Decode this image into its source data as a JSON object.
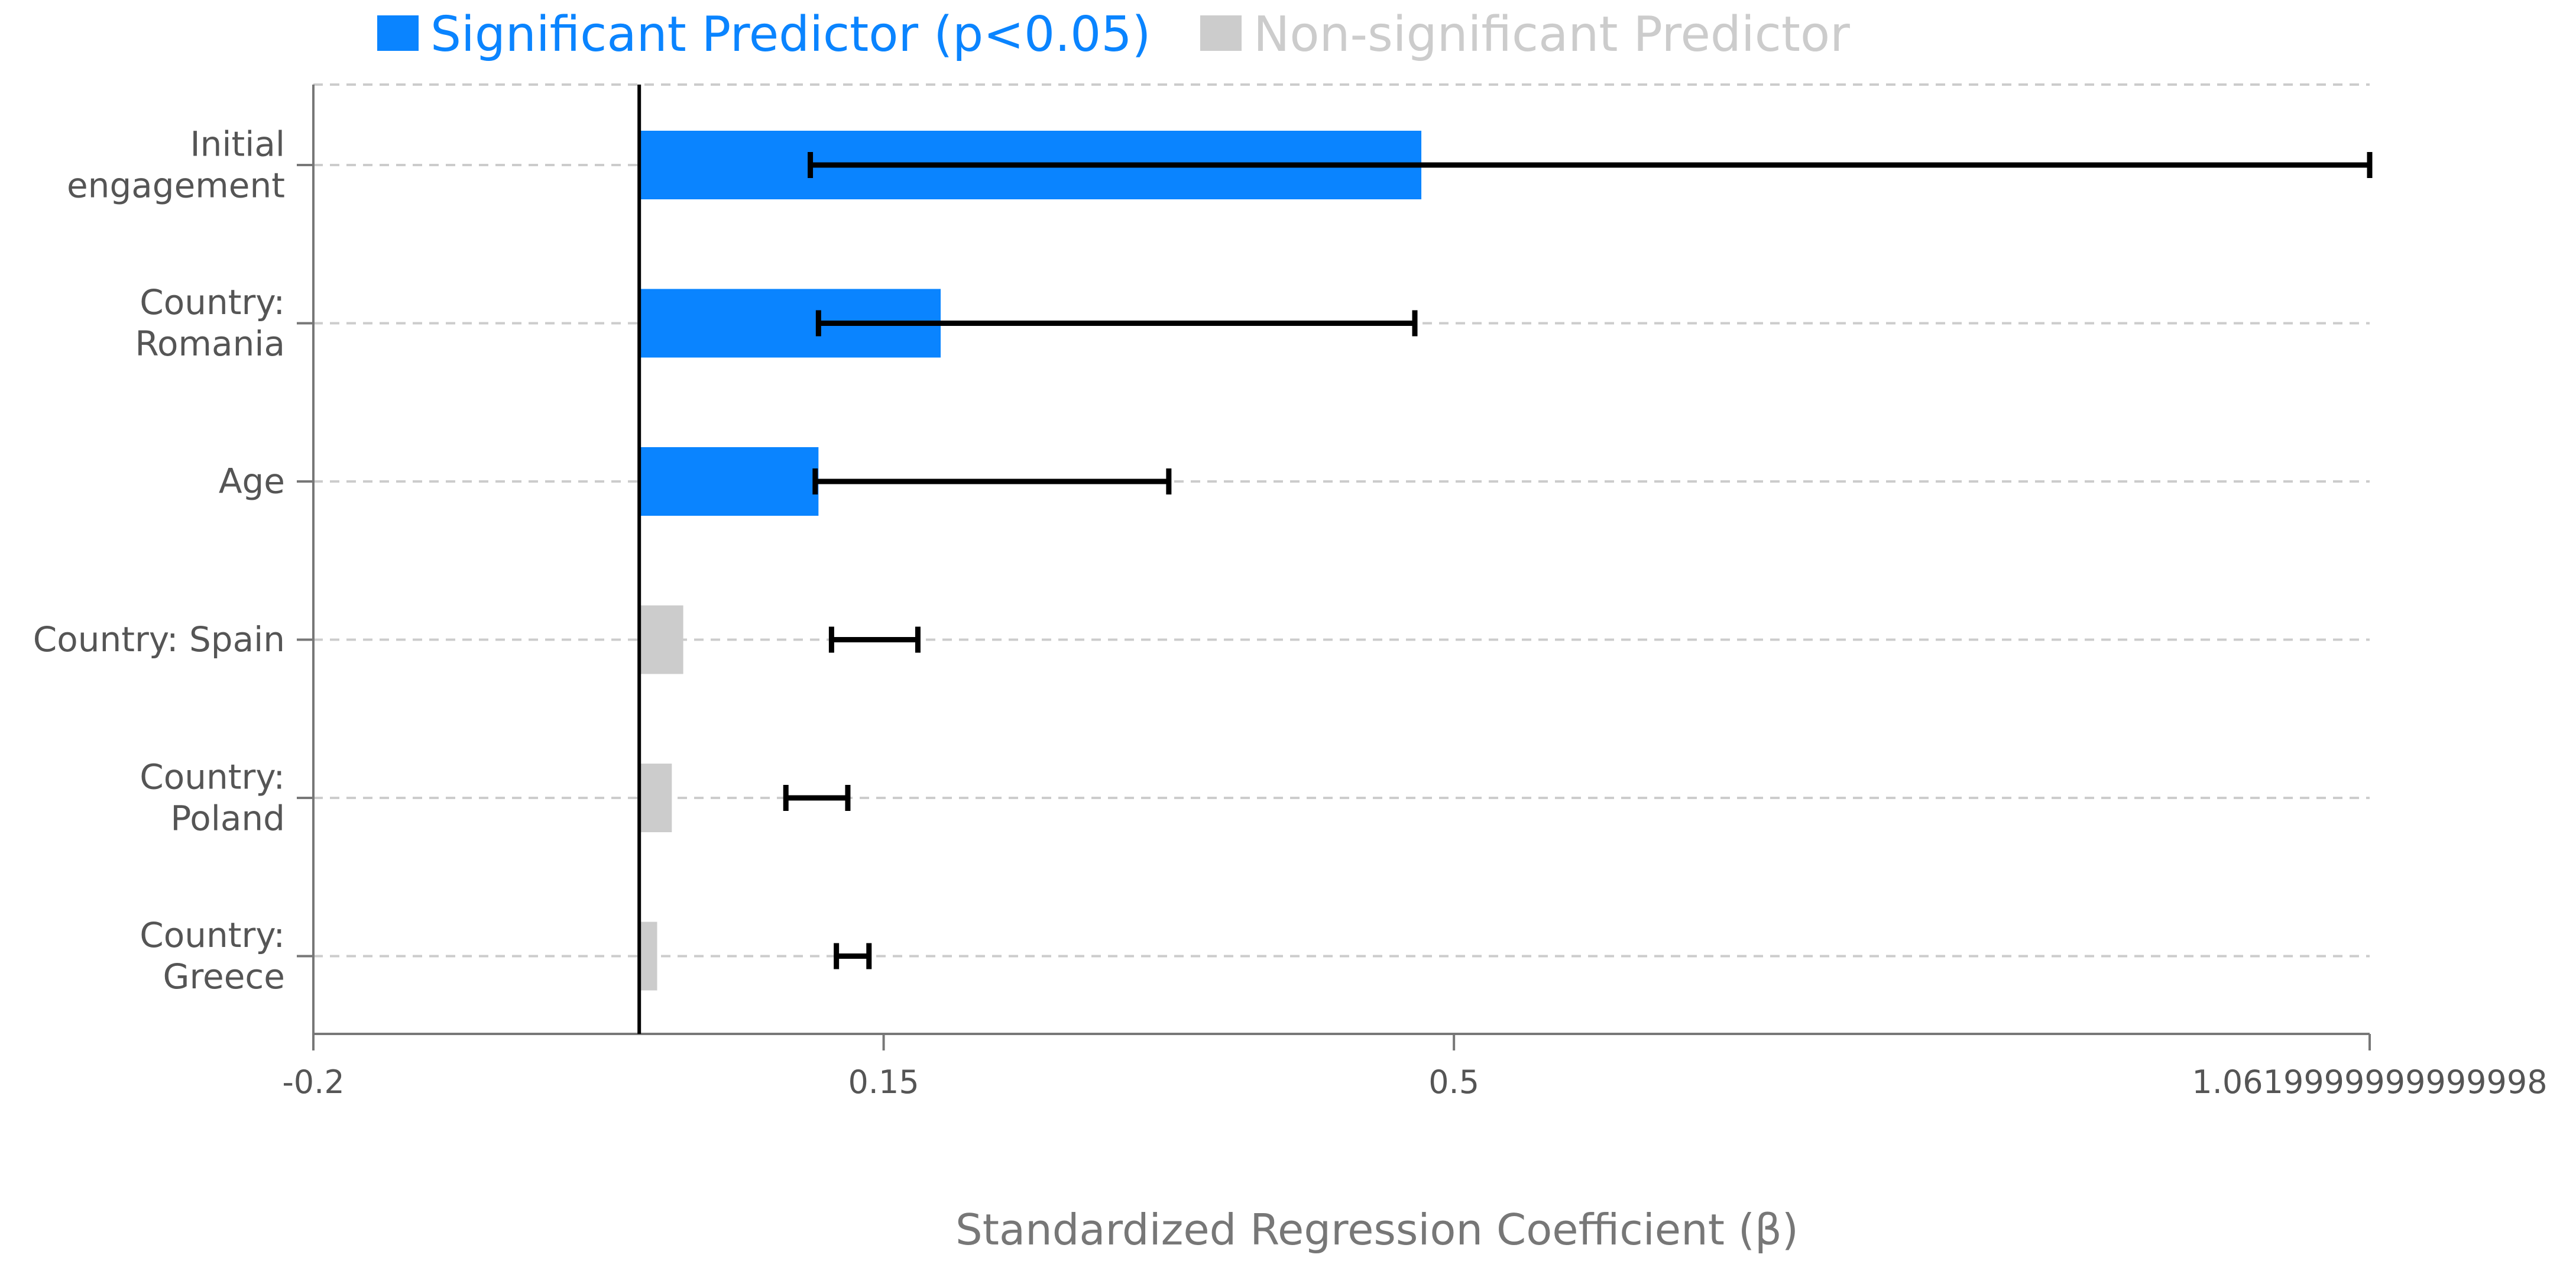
{
  "chart_data": {
    "type": "bar",
    "orientation": "horizontal",
    "title": "",
    "xlabel": "Standardized Regression Coefficient (β)",
    "ylabel": "",
    "xlim": [
      -0.2,
      1.0619999999999998
    ],
    "x_ticks": [
      -0.2,
      0.15,
      0.5,
      1.0619999999999998
    ],
    "x_tick_labels": [
      "-0.2",
      "0.15",
      "0.5",
      "1.0619999999999998"
    ],
    "zero_line": 0,
    "grid": "horizontal dashed",
    "legend": {
      "position": "top",
      "entries": [
        {
          "label": "Significant Predictor (p<0.05)",
          "color": "#0a84ff"
        },
        {
          "label": "Non-significant Predictor",
          "color": "#cccccc"
        }
      ]
    },
    "categories": [
      {
        "label_lines": [
          "Initial",
          "engagement"
        ],
        "value": 0.48,
        "ci_low": 0.105,
        "ci_high": 1.062,
        "significant": true
      },
      {
        "label_lines": [
          "Country:",
          "Romania"
        ],
        "value": 0.185,
        "ci_low": 0.11,
        "ci_high": 0.476,
        "significant": true
      },
      {
        "label_lines": [
          "Age"
        ],
        "value": 0.11,
        "ci_low": 0.108,
        "ci_high": 0.325,
        "significant": true
      },
      {
        "label_lines": [
          "Country: Spain"
        ],
        "value": 0.027,
        "ci_low": 0.118,
        "ci_high": 0.171,
        "significant": false
      },
      {
        "label_lines": [
          "Country:",
          "Poland"
        ],
        "value": 0.02,
        "ci_low": 0.09,
        "ci_high": 0.128,
        "significant": false
      },
      {
        "label_lines": [
          "Country:",
          "Greece"
        ],
        "value": 0.011,
        "ci_low": 0.121,
        "ci_high": 0.141,
        "significant": false
      }
    ]
  }
}
